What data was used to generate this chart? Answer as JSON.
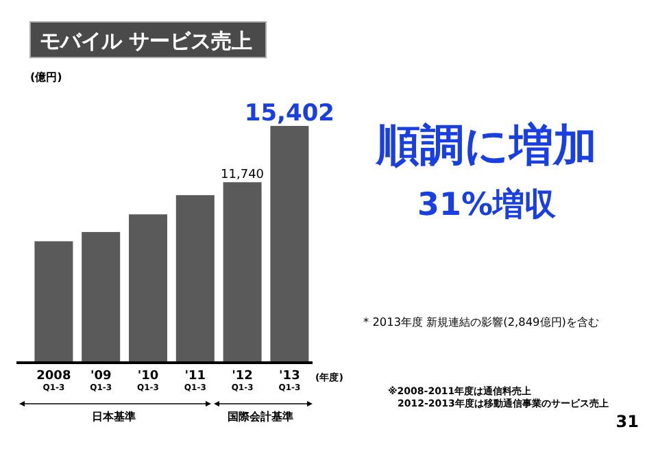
{
  "chart_data": {
    "type": "bar",
    "title": "モバイル サービス売上",
    "ylabel": "(億円)",
    "xlabel": "(年度)",
    "categories": [
      "2008\nQ1-3",
      "'09\nQ1-3",
      "'10\nQ1-3",
      "'11\nQ1-3",
      "'12\nQ1-3",
      "'13\nQ1-3"
    ],
    "values": [
      7900,
      8500,
      9650,
      10900,
      11740,
      15402
    ],
    "value_labels": [
      null,
      null,
      null,
      null,
      "11,740",
      "15,402"
    ],
    "color": "#5a5a5a",
    "annotations": [
      "日本基準",
      "国際会計基準",
      "順調に増加",
      "31%増収",
      "* 2013年度 新規連結の影響(2,849億円)を含む",
      "※2008-2011年度は通信料売上",
      "2012-2013年度は移動通信事業のサービス売上",
      "31"
    ]
  }
}
